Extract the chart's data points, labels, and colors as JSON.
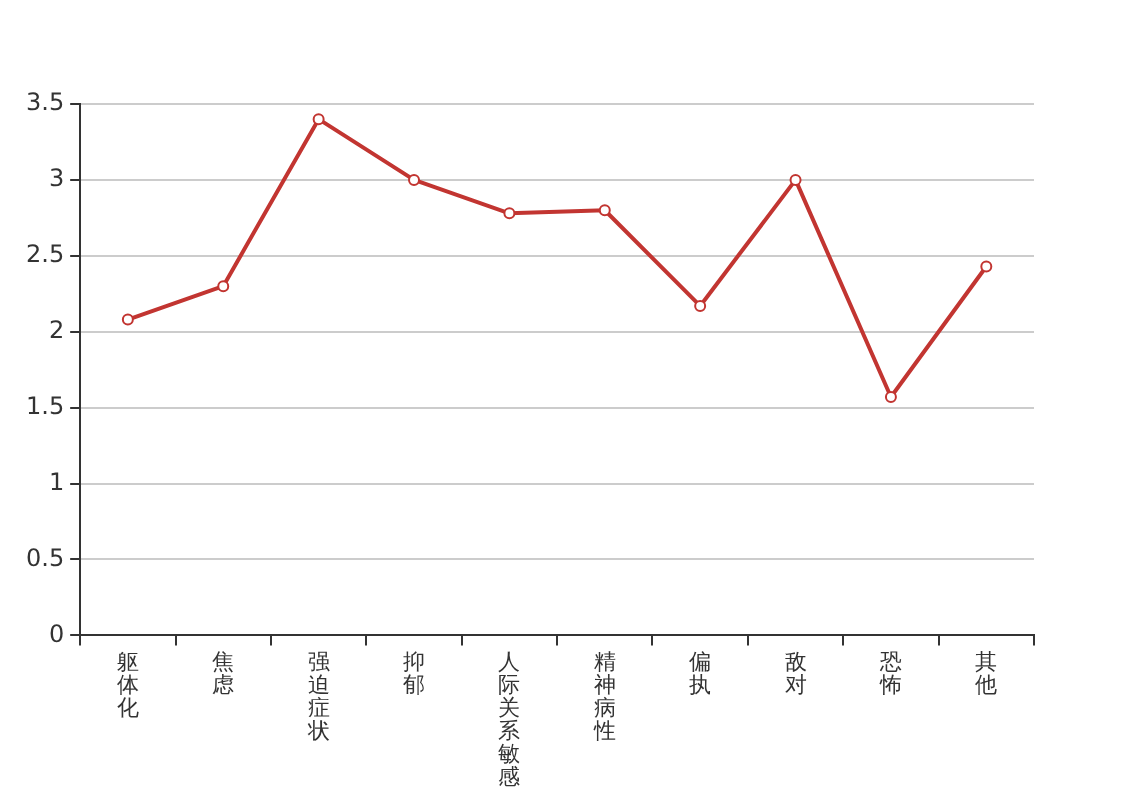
{
  "chart_data": {
    "type": "line",
    "categories": [
      "躯体化",
      "焦虑",
      "强迫症状",
      "抑郁",
      "人际关系敏感",
      "精神病性",
      "偏执",
      "敌对",
      "恐怖",
      "其他"
    ],
    "series": [
      {
        "color": "#c23531",
        "values": [
          2.08,
          2.3,
          3.4,
          3.0,
          2.78,
          2.8,
          2.17,
          3.0,
          1.57,
          2.43
        ]
      }
    ],
    "ylim": [
      0,
      3.5
    ],
    "yticks": [
      0,
      0.5,
      1,
      1.5,
      2,
      2.5,
      3,
      3.5
    ],
    "grid": "y",
    "legend": false,
    "marker": "circle",
    "line_style": "solid"
  }
}
